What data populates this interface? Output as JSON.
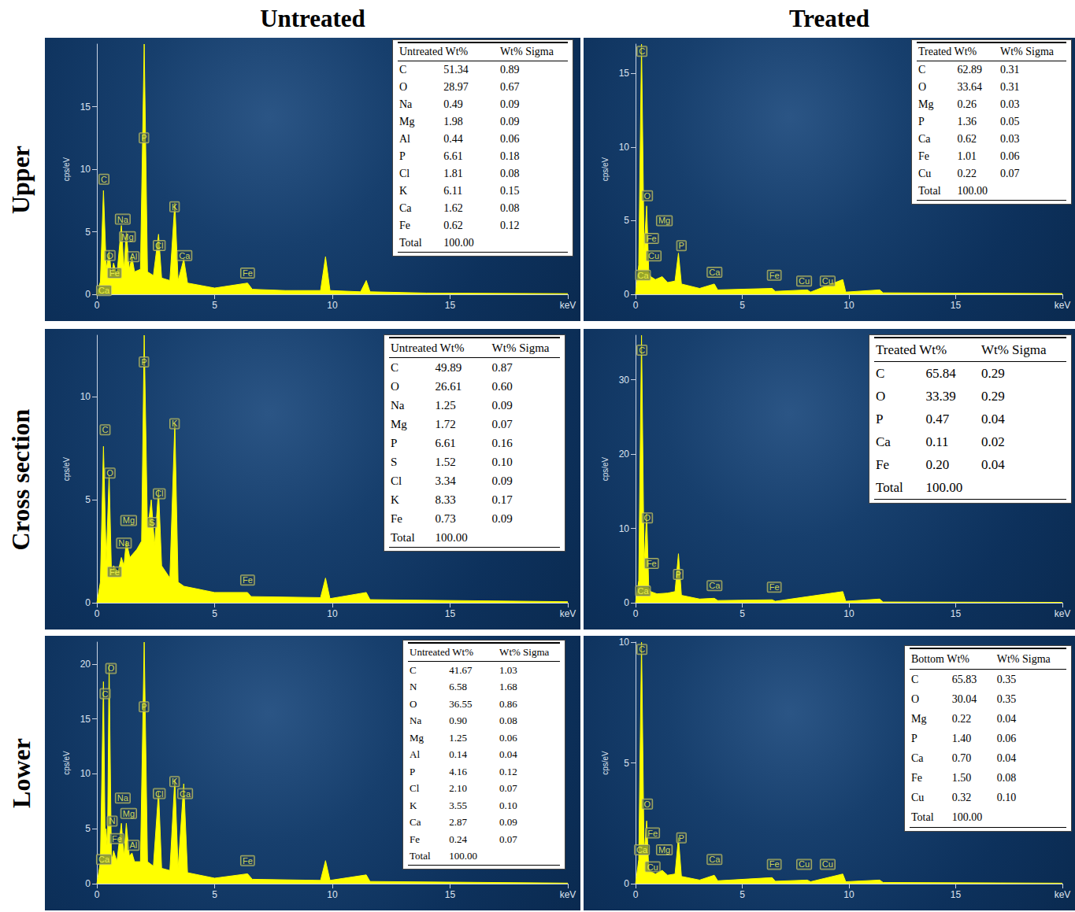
{
  "column_titles": [
    "Untreated",
    "Treated"
  ],
  "row_titles": [
    "Upper",
    "Cross section",
    "Lower"
  ],
  "chart_data": [
    {
      "type": "area",
      "color": "#ffff00",
      "y_label": "cps/eV",
      "xlim": [
        0,
        20
      ],
      "xticks": [
        0,
        5,
        10,
        15,
        {
          "value": 20,
          "label": "keV"
        }
      ],
      "ylim": [
        0,
        20
      ],
      "yticks": [
        0,
        5,
        10,
        15
      ],
      "x": [
        0,
        0.15,
        0.28,
        0.4,
        0.52,
        0.62,
        0.71,
        0.85,
        1.04,
        1.15,
        1.25,
        1.38,
        1.49,
        1.6,
        1.85,
        2.01,
        2.15,
        2.4,
        2.62,
        2.75,
        3.1,
        3.31,
        3.45,
        3.69,
        3.85,
        5,
        6.4,
        6.6,
        8,
        9.5,
        9.71,
        9.9,
        11.2,
        11.44,
        11.6,
        14,
        20
      ],
      "values": [
        0,
        1,
        8.3,
        2,
        3.5,
        1.5,
        2.5,
        1.5,
        5.5,
        2,
        5,
        2,
        3,
        1.8,
        2,
        20,
        1.8,
        1.5,
        4.8,
        1.3,
        1.1,
        7.3,
        1.1,
        2.8,
        0.9,
        0.5,
        0.9,
        0.4,
        0.3,
        0.3,
        3,
        0.3,
        0.2,
        1.1,
        0.2,
        0.1,
        0.05
      ],
      "annotations": [
        {
          "text": "C",
          "x": 0.3,
          "y": 9.2
        },
        {
          "text": "Na",
          "x": 1.1,
          "y": 6
        },
        {
          "text": "Mg",
          "x": 1.3,
          "y": 4.6
        },
        {
          "text": "O",
          "x": 0.55,
          "y": 3.1
        },
        {
          "text": "Al",
          "x": 1.55,
          "y": 3
        },
        {
          "text": "Fe",
          "x": 0.75,
          "y": 1.7
        },
        {
          "text": "Ca",
          "x": 0.3,
          "y": 0.3
        },
        {
          "text": "P",
          "x": 2.0,
          "y": 12.5
        },
        {
          "text": "Cl",
          "x": 2.65,
          "y": 3.9
        },
        {
          "text": "K",
          "x": 3.3,
          "y": 7
        },
        {
          "text": "Ca",
          "x": 3.72,
          "y": 3.1
        },
        {
          "text": "Fe",
          "x": 6.4,
          "y": 1.7
        }
      ],
      "table": {
        "header": [
          "Untreated Wt%",
          "Wt% Sigma"
        ],
        "rows": [
          [
            "C",
            "51.34",
            "0.89"
          ],
          [
            "O",
            "28.97",
            "0.67"
          ],
          [
            "Na",
            "0.49",
            "0.09"
          ],
          [
            "Mg",
            "1.98",
            "0.09"
          ],
          [
            "Al",
            "0.44",
            "0.06"
          ],
          [
            "P",
            "6.61",
            "0.18"
          ],
          [
            "Cl",
            "1.81",
            "0.08"
          ],
          [
            "K",
            "6.11",
            "0.15"
          ],
          [
            "Ca",
            "1.62",
            "0.08"
          ],
          [
            "Fe",
            "0.62",
            "0.12"
          ],
          [
            "Total",
            "100.00"
          ]
        ]
      }
    },
    {
      "type": "area",
      "color": "#ffff00",
      "y_label": "cps/eV",
      "xlim": [
        0,
        20
      ],
      "xticks": [
        0,
        5,
        10,
        15,
        {
          "value": 20,
          "label": "keV"
        }
      ],
      "ylim": [
        0,
        17
      ],
      "yticks": [
        0,
        5,
        10,
        15
      ],
      "x": [
        0,
        0.15,
        0.28,
        0.4,
        0.52,
        0.62,
        0.71,
        0.93,
        1.25,
        1.5,
        1.85,
        2.01,
        2.15,
        3,
        3.69,
        3.85,
        6.4,
        6.55,
        8.05,
        8.2,
        9.71,
        9.85,
        11.44,
        11.6,
        20
      ],
      "values": [
        0,
        2,
        17,
        3,
        6,
        1.5,
        1.2,
        1,
        1.2,
        0.8,
        0.9,
        2.8,
        0.7,
        0.4,
        0.7,
        0.3,
        0.4,
        0.2,
        0.3,
        0.15,
        1,
        0.15,
        0.3,
        0.1,
        0.05
      ],
      "annotations": [
        {
          "text": "C",
          "x": 0.3,
          "y": 16.5
        },
        {
          "text": "O",
          "x": 0.55,
          "y": 6.7
        },
        {
          "text": "Mg",
          "x": 1.35,
          "y": 5
        },
        {
          "text": "Fe",
          "x": 0.75,
          "y": 3.8
        },
        {
          "text": "Cu",
          "x": 0.85,
          "y": 2.6
        },
        {
          "text": "P",
          "x": 2.15,
          "y": 3.3
        },
        {
          "text": "Ca",
          "x": 0.35,
          "y": 1.3
        },
        {
          "text": "Ca",
          "x": 3.7,
          "y": 1.5
        },
        {
          "text": "Fe",
          "x": 6.5,
          "y": 1.3
        },
        {
          "text": "Cu",
          "x": 7.9,
          "y": 0.9
        },
        {
          "text": "Cu",
          "x": 9.0,
          "y": 0.9
        }
      ],
      "table": {
        "header": [
          "Treated Wt%",
          "Wt% Sigma"
        ],
        "rows": [
          [
            "C",
            "62.89",
            "0.31"
          ],
          [
            "O",
            "33.64",
            "0.31"
          ],
          [
            "Mg",
            "0.26",
            "0.03"
          ],
          [
            "P",
            "1.36",
            "0.05"
          ],
          [
            "Ca",
            "0.62",
            "0.03"
          ],
          [
            "Fe",
            "1.01",
            "0.06"
          ],
          [
            "Cu",
            "0.22",
            "0.07"
          ],
          [
            "Total",
            "100.00"
          ]
        ]
      }
    },
    {
      "type": "area",
      "color": "#ffff00",
      "y_label": "cps/eV",
      "xlim": [
        0,
        20
      ],
      "xticks": [
        0,
        5,
        10,
        15,
        {
          "value": 20,
          "label": "keV"
        }
      ],
      "ylim": [
        0,
        13
      ],
      "yticks": [
        0,
        5,
        10
      ],
      "x": [
        0,
        0.15,
        0.28,
        0.4,
        0.52,
        0.62,
        0.71,
        0.9,
        1.04,
        1.15,
        1.25,
        1.4,
        1.7,
        1.9,
        2.01,
        2.15,
        2.31,
        2.45,
        2.62,
        2.75,
        3.1,
        3.31,
        3.45,
        3.7,
        5,
        6.4,
        6.55,
        9.5,
        9.71,
        9.9,
        11.44,
        11.6,
        20
      ],
      "values": [
        0,
        1,
        7.6,
        2,
        6.2,
        1.5,
        1.8,
        1.5,
        2.2,
        1.8,
        3,
        2.2,
        2.6,
        3,
        13,
        3.5,
        5,
        2.8,
        5.5,
        1.8,
        1.2,
        8.7,
        1,
        0.8,
        0.5,
        0.5,
        0.3,
        0.25,
        1.2,
        0.2,
        0.5,
        0.15,
        0.05
      ],
      "annotations": [
        {
          "text": "C",
          "x": 0.35,
          "y": 8.4
        },
        {
          "text": "O",
          "x": 0.55,
          "y": 6.3
        },
        {
          "text": "Mg",
          "x": 1.35,
          "y": 4.0
        },
        {
          "text": "Na",
          "x": 1.15,
          "y": 2.9
        },
        {
          "text": "Fe",
          "x": 0.75,
          "y": 1.5
        },
        {
          "text": "P",
          "x": 2.0,
          "y": 11.7
        },
        {
          "text": "S",
          "x": 2.35,
          "y": 3.9
        },
        {
          "text": "Cl",
          "x": 2.65,
          "y": 5.3
        },
        {
          "text": "K",
          "x": 3.3,
          "y": 8.7
        },
        {
          "text": "Fe",
          "x": 6.4,
          "y": 1.1
        }
      ],
      "table": {
        "header": [
          "Untreated Wt%",
          "Wt% Sigma"
        ],
        "rows": [
          [
            "C",
            "49.89",
            "0.87"
          ],
          [
            "O",
            "26.61",
            "0.60"
          ],
          [
            "Na",
            "1.25",
            "0.09"
          ],
          [
            "Mg",
            "1.72",
            "0.07"
          ],
          [
            "P",
            "6.61",
            "0.16"
          ],
          [
            "S",
            "1.52",
            "0.10"
          ],
          [
            "Cl",
            "3.34",
            "0.09"
          ],
          [
            "K",
            "8.33",
            "0.17"
          ],
          [
            "Fe",
            "0.73",
            "0.09"
          ],
          [
            "Total",
            "100.00"
          ]
        ]
      }
    },
    {
      "type": "area",
      "color": "#ffff00",
      "y_label": "cps/eV",
      "xlim": [
        0,
        20
      ],
      "xticks": [
        0,
        5,
        10,
        15,
        {
          "value": 20,
          "label": "keV"
        }
      ],
      "ylim": [
        0,
        36
      ],
      "yticks": [
        0,
        10,
        20,
        30
      ],
      "x": [
        0,
        0.15,
        0.28,
        0.4,
        0.52,
        0.62,
        0.71,
        1,
        1.5,
        1.85,
        2.01,
        2.15,
        3,
        3.69,
        3.85,
        6.4,
        6.55,
        9.71,
        9.85,
        11.44,
        11.6,
        20
      ],
      "values": [
        0,
        3,
        36,
        5,
        12,
        2,
        1.5,
        1.2,
        1.3,
        1.5,
        6.6,
        1,
        0.5,
        0.6,
        0.3,
        0.4,
        0.2,
        1.5,
        0.2,
        0.5,
        0.1,
        0.05
      ],
      "annotations": [
        {
          "text": "C",
          "x": 0.3,
          "y": 34
        },
        {
          "text": "O",
          "x": 0.55,
          "y": 11.4
        },
        {
          "text": "Fe",
          "x": 0.75,
          "y": 5.3
        },
        {
          "text": "P",
          "x": 2.0,
          "y": 3.8
        },
        {
          "text": "Ca",
          "x": 0.35,
          "y": 1.6
        },
        {
          "text": "Ca",
          "x": 3.7,
          "y": 2.3
        },
        {
          "text": "Fe",
          "x": 6.5,
          "y": 2.1
        }
      ],
      "table": {
        "header": [
          "Treated Wt%",
          "Wt% Sigma"
        ],
        "rows": [
          [
            "C",
            "65.84",
            "0.29"
          ],
          [
            "O",
            "33.39",
            "0.29"
          ],
          [
            "P",
            "0.47",
            "0.04"
          ],
          [
            "Ca",
            "0.11",
            "0.02"
          ],
          [
            "Fe",
            "0.20",
            "0.04"
          ],
          [
            "Total",
            "100.00"
          ]
        ]
      }
    },
    {
      "type": "area",
      "color": "#ffff00",
      "y_label": "cps/eV",
      "xlim": [
        0,
        20
      ],
      "xticks": [
        0,
        5,
        10,
        15,
        {
          "value": 20,
          "label": "keV"
        }
      ],
      "ylim": [
        0,
        22
      ],
      "yticks": [
        0,
        5,
        10,
        15,
        20
      ],
      "x": [
        0,
        0.15,
        0.28,
        0.35,
        0.39,
        0.45,
        0.52,
        0.62,
        0.71,
        0.85,
        1.04,
        1.15,
        1.25,
        1.38,
        1.49,
        1.6,
        1.85,
        2.01,
        2.15,
        2.4,
        2.62,
        2.75,
        3.1,
        3.31,
        3.45,
        3.69,
        3.85,
        5,
        6.4,
        6.6,
        9.5,
        9.71,
        9.9,
        11.44,
        11.6,
        20
      ],
      "values": [
        0,
        2,
        18.4,
        4,
        5,
        3,
        20,
        2,
        3,
        2,
        5.5,
        2.5,
        5.5,
        2.5,
        2.8,
        2,
        2,
        22,
        2,
        1.6,
        8.4,
        1.4,
        1.2,
        9.5,
        1.4,
        9.1,
        1,
        0.5,
        0.9,
        0.4,
        0.3,
        2.1,
        0.3,
        0.8,
        0.2,
        0.05
      ],
      "annotations": [
        {
          "text": "O",
          "x": 0.6,
          "y": 19.6
        },
        {
          "text": "C",
          "x": 0.35,
          "y": 17.3
        },
        {
          "text": "P",
          "x": 2.0,
          "y": 16.1
        },
        {
          "text": "K",
          "x": 3.3,
          "y": 9.3
        },
        {
          "text": "Cl",
          "x": 2.65,
          "y": 8.2
        },
        {
          "text": "Ca",
          "x": 3.75,
          "y": 8.2
        },
        {
          "text": "Na",
          "x": 1.1,
          "y": 7.8
        },
        {
          "text": "Mg",
          "x": 1.35,
          "y": 6.4
        },
        {
          "text": "N",
          "x": 0.65,
          "y": 5.7
        },
        {
          "text": "Fe",
          "x": 0.85,
          "y": 4.1
        },
        {
          "text": "Al",
          "x": 1.55,
          "y": 3.5
        },
        {
          "text": "Ca",
          "x": 0.3,
          "y": 2.2
        },
        {
          "text": "Fe",
          "x": 6.4,
          "y": 2.1
        }
      ],
      "table": {
        "header": [
          "Untreated Wt%",
          "Wt% Sigma"
        ],
        "rows": [
          [
            "C",
            "41.67",
            "1.03"
          ],
          [
            "N",
            "6.58",
            "1.68"
          ],
          [
            "O",
            "36.55",
            "0.86"
          ],
          [
            "Na",
            "0.90",
            "0.08"
          ],
          [
            "Mg",
            "1.25",
            "0.06"
          ],
          [
            "Al",
            "0.14",
            "0.04"
          ],
          [
            "P",
            "4.16",
            "0.12"
          ],
          [
            "Cl",
            "2.10",
            "0.07"
          ],
          [
            "K",
            "3.55",
            "0.10"
          ],
          [
            "Ca",
            "2.87",
            "0.09"
          ],
          [
            "Fe",
            "0.24",
            "0.07"
          ],
          [
            "Total",
            "100.00"
          ]
        ]
      }
    },
    {
      "type": "area",
      "color": "#ffff00",
      "y_label": "cps/eV",
      "xlim": [
        0,
        20
      ],
      "xticks": [
        0,
        5,
        10,
        15,
        {
          "value": 20,
          "label": "keV"
        }
      ],
      "ylim": [
        0,
        10
      ],
      "yticks": [
        0,
        5,
        10
      ],
      "x": [
        0,
        0.15,
        0.28,
        0.4,
        0.52,
        0.62,
        0.71,
        0.93,
        1.25,
        1.5,
        1.85,
        2.01,
        2.15,
        3,
        3.69,
        3.85,
        6.4,
        6.55,
        8.05,
        8.2,
        9.71,
        9.85,
        11.44,
        11.6,
        20
      ],
      "values": [
        0,
        1,
        10,
        1.2,
        2.6,
        0.6,
        0.5,
        0.4,
        0.55,
        0.35,
        0.4,
        1.9,
        0.3,
        0.15,
        0.35,
        0.12,
        0.25,
        0.1,
        0.15,
        0.08,
        0.4,
        0.08,
        0.15,
        0.05,
        0.02
      ],
      "annotations": [
        {
          "text": "C",
          "x": 0.3,
          "y": 9.7
        },
        {
          "text": "O",
          "x": 0.55,
          "y": 3.3
        },
        {
          "text": "Fe",
          "x": 0.8,
          "y": 2.1
        },
        {
          "text": "P",
          "x": 2.15,
          "y": 1.9
        },
        {
          "text": "Ca",
          "x": 0.3,
          "y": 1.4
        },
        {
          "text": "Mg",
          "x": 1.35,
          "y": 1.4
        },
        {
          "text": "Cu",
          "x": 0.8,
          "y": 0.7
        },
        {
          "text": "Ca",
          "x": 3.7,
          "y": 1.0
        },
        {
          "text": "Fe",
          "x": 6.5,
          "y": 0.8
        },
        {
          "text": "Cu",
          "x": 7.9,
          "y": 0.8
        },
        {
          "text": "Cu",
          "x": 9.0,
          "y": 0.8
        }
      ],
      "table": {
        "header": [
          "Bottom Wt%",
          "Wt% Sigma"
        ],
        "rows": [
          [
            "C",
            "65.83",
            "0.35"
          ],
          [
            "O",
            "30.04",
            "0.35"
          ],
          [
            "Mg",
            "0.22",
            "0.04"
          ],
          [
            "P",
            "1.40",
            "0.06"
          ],
          [
            "Ca",
            "0.70",
            "0.04"
          ],
          [
            "Fe",
            "1.50",
            "0.08"
          ],
          [
            "Cu",
            "0.32",
            "0.10"
          ],
          [
            "Total",
            "100.00"
          ]
        ]
      }
    }
  ]
}
